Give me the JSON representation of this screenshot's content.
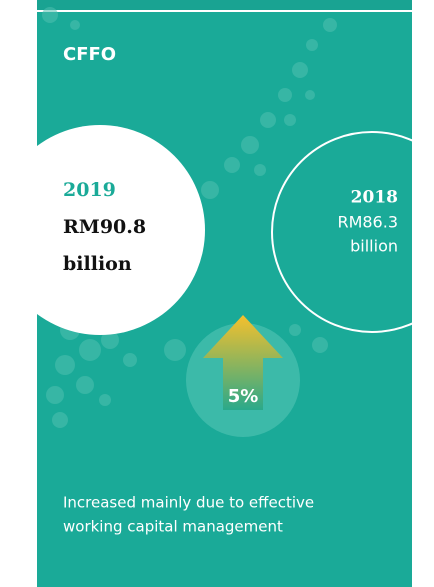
{
  "panel": {
    "title": "CFFO",
    "current": {
      "year": "2019",
      "amount": "RM90.8",
      "unit": "billion"
    },
    "previous": {
      "year": "2018",
      "amount": "RM86.3",
      "unit": "billion"
    },
    "change": "5%",
    "description": [
      "Increased mainly due to effective",
      "working capital management"
    ]
  }
}
